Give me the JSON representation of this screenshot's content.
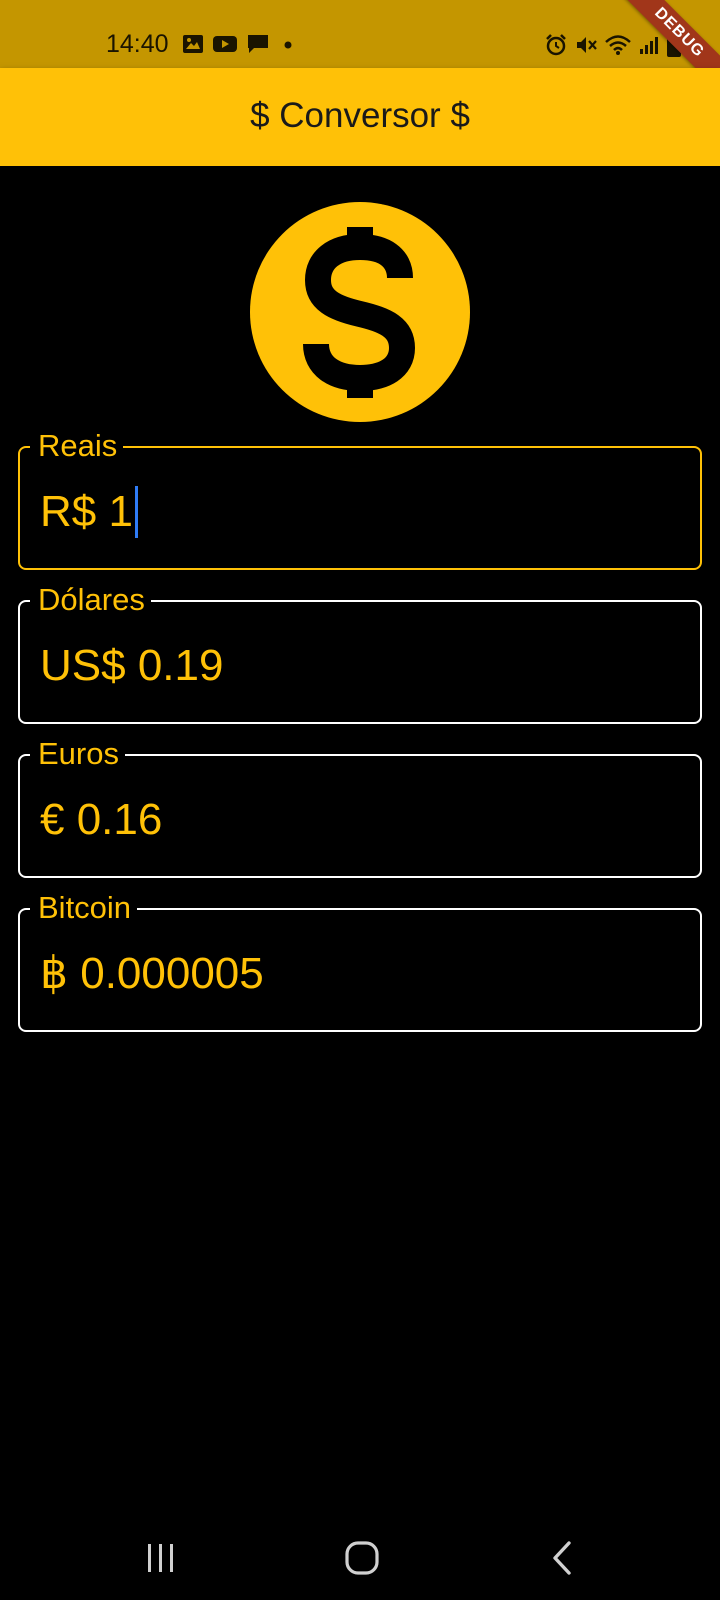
{
  "status_bar": {
    "time": "14:40",
    "left_icons": [
      "image-icon",
      "youtube-icon",
      "chat-icon",
      "dot-icon"
    ],
    "right_icons": [
      "alarm-icon",
      "mute-icon",
      "wifi-icon",
      "signal-icon",
      "battery-icon"
    ]
  },
  "debug_banner": "DEBUG",
  "app_bar": {
    "title": "$ Conversor $"
  },
  "hero_icon": "dollar-coin-icon",
  "fields": [
    {
      "label": "Reais",
      "value": "R$ 1",
      "focused": true
    },
    {
      "label": "Dólares",
      "value": "US$ 0.19",
      "focused": false
    },
    {
      "label": "Euros",
      "value": "€ 0.16",
      "focused": false
    },
    {
      "label": "Bitcoin",
      "value": "฿ 0.000005",
      "focused": false
    }
  ],
  "nav_bar": {
    "icons": [
      "recents-icon",
      "home-icon",
      "back-icon"
    ]
  },
  "colors": {
    "accent": "#FFC107",
    "status_bar": "#C49600",
    "background": "#000000",
    "caret": "#2F7CF6",
    "debug": "#A1361A"
  }
}
